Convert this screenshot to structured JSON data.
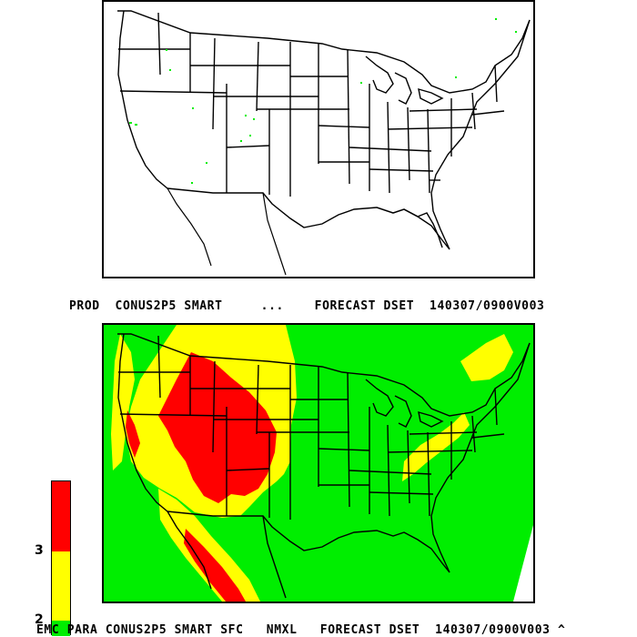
{
  "captions": {
    "top": "PROD  CONUS2P5 SMART     ...    FORECAST DSET  140307/0900V003",
    "bottom": "EMC PARA CONUS2P5 SMART SFC   NMXL   FORECAST DSET  140307/0900V003 ^"
  },
  "legend": {
    "ticks": [
      "3",
      "2"
    ],
    "colors": {
      "high": "#ff0000",
      "mid": "#ffff00",
      "low": "#00ee00"
    }
  },
  "map_colors": {
    "outline": "#000000",
    "background_top": "#ffffff",
    "fill_green": "#00ee00",
    "fill_yellow": "#ffff00",
    "fill_red": "#ff0000"
  }
}
